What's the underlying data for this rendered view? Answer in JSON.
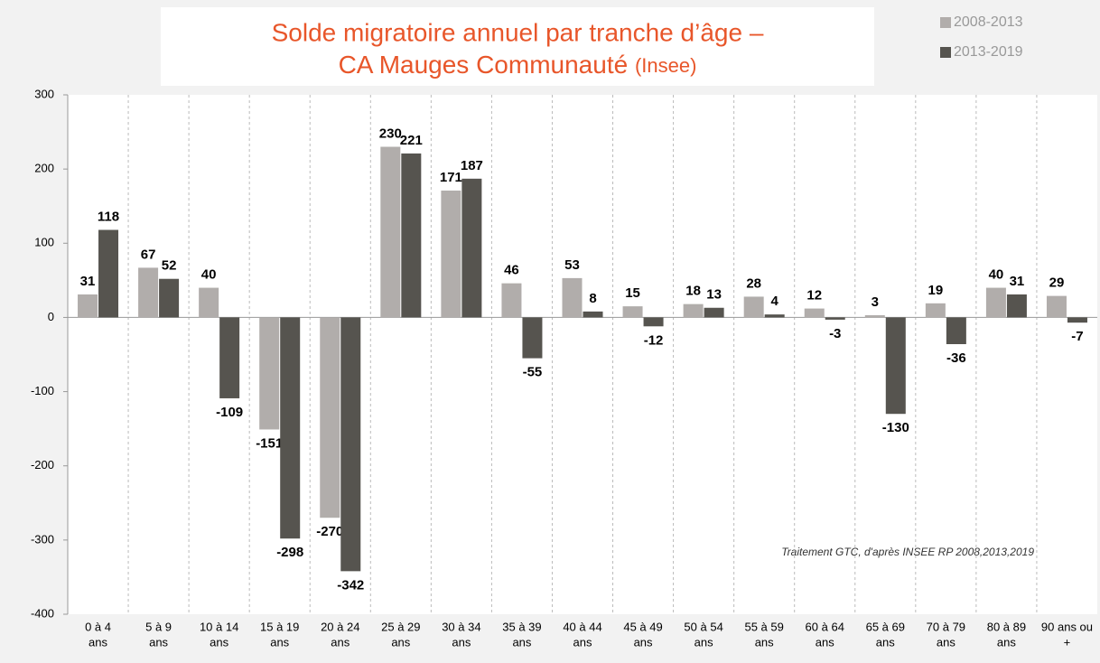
{
  "chart_data": {
    "type": "bar",
    "title": [
      "Solde migratoire annuel par tranche d’âge –",
      "CA Mauges Communauté"
    ],
    "title_note": "(Insee)",
    "annotation": "Traitement GTC, d'après INSEE RP  2008,2013,2019",
    "categories": [
      [
        "0 à 4",
        "ans"
      ],
      [
        "5 à 9",
        "ans"
      ],
      [
        "10 à 14",
        "ans"
      ],
      [
        "15 à 19",
        "ans"
      ],
      [
        "20 à 24",
        "ans"
      ],
      [
        "25 à 29",
        "ans"
      ],
      [
        "30 à 34",
        "ans"
      ],
      [
        "35 à 39",
        "ans"
      ],
      [
        "40 à 44",
        "ans"
      ],
      [
        "45 à 49",
        "ans"
      ],
      [
        "50 à 54",
        "ans"
      ],
      [
        "55 à 59",
        "ans"
      ],
      [
        "60 à 64",
        "ans"
      ],
      [
        "65 à 69",
        "ans"
      ],
      [
        "70 à 79",
        "ans"
      ],
      [
        "80 à 89",
        "ans"
      ],
      [
        "90 ans ou",
        "+"
      ]
    ],
    "series": [
      {
        "name": "2008-2013",
        "color": "#b1adab",
        "values": [
          31,
          67,
          40,
          -151,
          -270,
          230,
          171,
          46,
          53,
          15,
          18,
          28,
          12,
          3,
          19,
          40,
          29
        ]
      },
      {
        "name": "2013-2019",
        "color": "#56544f",
        "values": [
          118,
          52,
          -109,
          -298,
          -342,
          221,
          187,
          -55,
          8,
          -12,
          13,
          4,
          -3,
          -130,
          -36,
          31,
          -7
        ]
      }
    ],
    "ylim": [
      -400,
      300
    ],
    "yticks": [
      -400,
      -300,
      -200,
      -100,
      0,
      100,
      200,
      300
    ],
    "grid": true,
    "legend": "top-right"
  }
}
